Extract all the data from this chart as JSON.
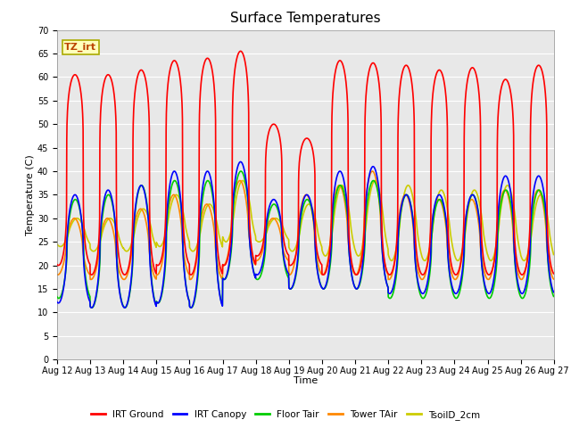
{
  "title": "Surface Temperatures",
  "xlabel": "Time",
  "ylabel": "Temperature (C)",
  "ylim": [
    0,
    70
  ],
  "yticks": [
    0,
    5,
    10,
    15,
    20,
    25,
    30,
    35,
    40,
    45,
    50,
    55,
    60,
    65,
    70
  ],
  "start_day": 12,
  "end_day": 27,
  "month": "Aug",
  "n_days": 15,
  "annotation_label": "TZ_irt",
  "annotation_color": "#bb4400",
  "annotation_bg": "#ffffbb",
  "annotation_edge": "#aaaa00",
  "series_order": [
    "TsoilD_2cm",
    "Tower TAir",
    "Floor Tair",
    "IRT Canopy",
    "IRT Ground"
  ],
  "series": {
    "IRT Ground": {
      "color": "#ff0000",
      "lw": 1.2,
      "zorder": 5
    },
    "IRT Canopy": {
      "color": "#0000ff",
      "lw": 1.2,
      "zorder": 4
    },
    "Floor Tair": {
      "color": "#00cc00",
      "lw": 1.2,
      "zorder": 3
    },
    "Tower TAir": {
      "color": "#ff8800",
      "lw": 1.2,
      "zorder": 2
    },
    "TsoilD_2cm": {
      "color": "#cccc00",
      "lw": 1.2,
      "zorder": 1
    }
  },
  "fig_facecolor": "#ffffff",
  "axes_facecolor": "#e8e8e8",
  "grid_color": "#ffffff",
  "irt_ground_maxes": [
    60.5,
    60.5,
    61.5,
    63.5,
    64.0,
    65.5,
    50.0,
    47.0,
    63.5,
    63.0,
    62.5,
    61.5,
    62.0,
    59.5,
    62.5
  ],
  "irt_ground_mins": [
    20.0,
    18.0,
    18.0,
    20.0,
    18.0,
    20.0,
    22.0,
    20.0,
    18.0,
    18.0,
    18.0,
    18.0,
    18.0,
    18.0,
    18.0
  ],
  "canopy_maxes": [
    35.0,
    36.0,
    37.0,
    40.0,
    40.0,
    42.0,
    34.0,
    35.0,
    40.0,
    41.0,
    35.0,
    35.0,
    35.0,
    39.0,
    39.0
  ],
  "canopy_mins": [
    12.0,
    11.0,
    11.0,
    12.0,
    11.0,
    17.0,
    18.0,
    15.0,
    15.0,
    15.0,
    14.0,
    14.0,
    14.0,
    14.0,
    14.0
  ],
  "floor_maxes": [
    34.0,
    35.0,
    37.0,
    38.0,
    38.0,
    40.0,
    33.0,
    34.0,
    37.0,
    38.0,
    35.0,
    34.0,
    35.0,
    36.0,
    36.0
  ],
  "floor_mins": [
    13.0,
    11.0,
    11.0,
    12.0,
    11.0,
    17.0,
    17.0,
    15.0,
    15.0,
    15.0,
    13.0,
    13.0,
    13.0,
    13.0,
    13.0
  ],
  "tower_maxes": [
    30.0,
    30.0,
    32.0,
    35.0,
    33.0,
    38.0,
    30.0,
    35.0,
    37.0,
    40.0,
    35.0,
    34.0,
    34.0,
    36.0,
    36.0
  ],
  "tower_mins": [
    18.0,
    17.0,
    17.0,
    18.0,
    17.0,
    20.0,
    21.0,
    18.0,
    18.0,
    18.0,
    17.0,
    17.0,
    17.0,
    17.0,
    17.0
  ],
  "tsoil_maxes": [
    30.0,
    30.0,
    32.0,
    35.0,
    33.0,
    38.0,
    30.0,
    33.0,
    37.0,
    38.0,
    37.0,
    36.0,
    36.0,
    37.0,
    35.0
  ],
  "tsoil_mins": [
    24.0,
    23.0,
    23.0,
    24.0,
    23.0,
    25.0,
    25.0,
    23.0,
    22.0,
    22.0,
    21.0,
    21.0,
    21.0,
    21.0,
    21.0
  ],
  "pts_per_day": 144
}
